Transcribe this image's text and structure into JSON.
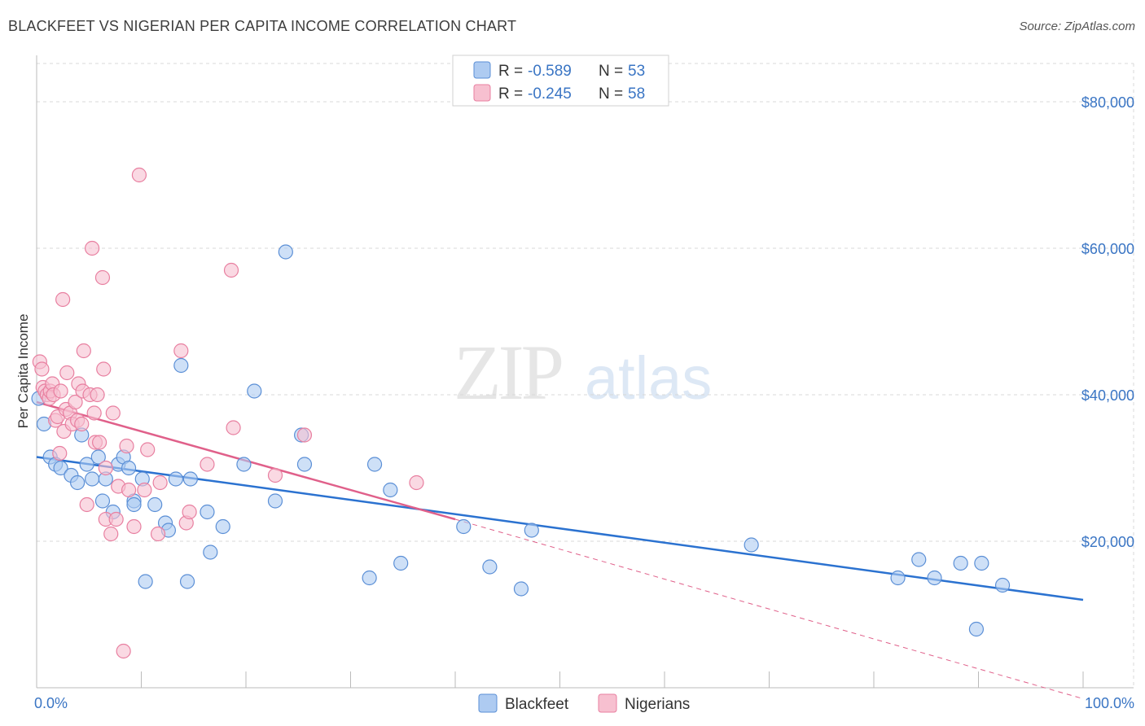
{
  "title": "BLACKFEET VS NIGERIAN PER CAPITA INCOME CORRELATION CHART",
  "source": "Source: ZipAtlas.com",
  "watermark": {
    "zip": "ZIP",
    "atlas": "atlas"
  },
  "colors": {
    "blackfeet_fill": "#aecbf1",
    "blackfeet_stroke": "#5b8fd6",
    "blackfeet_line": "#2b72d0",
    "nigerian_fill": "#f7c0d0",
    "nigerian_stroke": "#e87fa0",
    "nigerian_line": "#e0608a",
    "axis_text": "#3a75c4",
    "grid": "#d8d8d8"
  },
  "chart_data": {
    "type": "scatter",
    "title": "BLACKFEET VS NIGERIAN PER CAPITA INCOME CORRELATION CHART",
    "xlabel": "",
    "ylabel": "Per Capita Income",
    "xlim": [
      0,
      100
    ],
    "ylim": [
      0,
      85000
    ],
    "x_tick_labels": [
      "0.0%",
      "100.0%"
    ],
    "y_ticks": [
      20000,
      40000,
      60000,
      80000
    ],
    "y_tick_labels": [
      "$20,000",
      "$40,000",
      "$60,000",
      "$80,000"
    ],
    "legend": [
      {
        "name": "Blackfeet",
        "r_label": "R =",
        "r": "-0.589",
        "n_label": "N =",
        "n": "53"
      },
      {
        "name": "Nigerians",
        "r_label": "R =",
        "r": "-0.245",
        "n_label": "N =",
        "n": "58"
      }
    ],
    "series": [
      {
        "name": "Blackfeet",
        "trend": {
          "x0": 0,
          "y0": 31500,
          "x1": 100,
          "y1": 12000
        },
        "points": [
          [
            0.2,
            39500
          ],
          [
            0.7,
            36000
          ],
          [
            1.3,
            31500
          ],
          [
            1.8,
            30500
          ],
          [
            2.3,
            30000
          ],
          [
            3.3,
            29000
          ],
          [
            3.9,
            28000
          ],
          [
            4.3,
            34500
          ],
          [
            4.8,
            30500
          ],
          [
            5.3,
            28500
          ],
          [
            5.9,
            31500
          ],
          [
            6.3,
            25500
          ],
          [
            6.6,
            28500
          ],
          [
            7.3,
            24000
          ],
          [
            7.8,
            30500
          ],
          [
            8.3,
            31500
          ],
          [
            8.8,
            30000
          ],
          [
            9.3,
            25500
          ],
          [
            9.3,
            25000
          ],
          [
            10.1,
            28500
          ],
          [
            10.4,
            14500
          ],
          [
            11.3,
            25000
          ],
          [
            12.3,
            22500
          ],
          [
            12.6,
            21500
          ],
          [
            13.3,
            28500
          ],
          [
            13.8,
            44000
          ],
          [
            14.4,
            14500
          ],
          [
            14.7,
            28500
          ],
          [
            16.3,
            24000
          ],
          [
            16.6,
            18500
          ],
          [
            17.8,
            22000
          ],
          [
            19.8,
            30500
          ],
          [
            20.8,
            40500
          ],
          [
            22.8,
            25500
          ],
          [
            23.8,
            59500
          ],
          [
            25.3,
            34500
          ],
          [
            25.6,
            30500
          ],
          [
            31.8,
            15000
          ],
          [
            32.3,
            30500
          ],
          [
            33.8,
            27000
          ],
          [
            34.8,
            17000
          ],
          [
            40.8,
            22000
          ],
          [
            43.3,
            16500
          ],
          [
            46.3,
            13500
          ],
          [
            47.3,
            21500
          ],
          [
            68.3,
            19500
          ],
          [
            82.3,
            15000
          ],
          [
            84.3,
            17500
          ],
          [
            85.8,
            15000
          ],
          [
            88.3,
            17000
          ],
          [
            89.8,
            8000
          ],
          [
            90.3,
            17000
          ],
          [
            92.3,
            14000
          ]
        ]
      },
      {
        "name": "Nigerians",
        "trend": {
          "x0": 0,
          "y0": 39000,
          "x1": 40,
          "y1": 23000,
          "dash_x1": 100,
          "dash_y1": -1500
        },
        "points": [
          [
            0.3,
            44500
          ],
          [
            0.5,
            43500
          ],
          [
            0.6,
            41000
          ],
          [
            0.8,
            40500
          ],
          [
            1.0,
            40000
          ],
          [
            1.2,
            39500
          ],
          [
            1.3,
            40500
          ],
          [
            1.5,
            41500
          ],
          [
            1.6,
            40000
          ],
          [
            1.8,
            36500
          ],
          [
            2.0,
            37000
          ],
          [
            2.2,
            32000
          ],
          [
            2.3,
            40500
          ],
          [
            2.6,
            35000
          ],
          [
            2.8,
            38000
          ],
          [
            2.9,
            43000
          ],
          [
            3.2,
            37500
          ],
          [
            3.4,
            36000
          ],
          [
            3.7,
            39000
          ],
          [
            3.9,
            36500
          ],
          [
            4.0,
            41500
          ],
          [
            4.3,
            36000
          ],
          [
            4.4,
            40500
          ],
          [
            4.5,
            46000
          ],
          [
            4.8,
            25000
          ],
          [
            5.1,
            40000
          ],
          [
            5.3,
            60000
          ],
          [
            5.5,
            37500
          ],
          [
            5.6,
            33500
          ],
          [
            5.8,
            40000
          ],
          [
            6.0,
            33500
          ],
          [
            6.3,
            56000
          ],
          [
            6.4,
            43500
          ],
          [
            6.6,
            23000
          ],
          [
            6.6,
            30000
          ],
          [
            7.1,
            21000
          ],
          [
            7.3,
            37500
          ],
          [
            7.6,
            23000
          ],
          [
            7.8,
            27500
          ],
          [
            8.3,
            5000
          ],
          [
            8.6,
            33000
          ],
          [
            8.8,
            27000
          ],
          [
            9.3,
            22000
          ],
          [
            9.8,
            70000
          ],
          [
            10.3,
            27000
          ],
          [
            10.6,
            32500
          ],
          [
            11.6,
            21000
          ],
          [
            11.8,
            28000
          ],
          [
            13.8,
            46000
          ],
          [
            14.3,
            22500
          ],
          [
            14.6,
            24000
          ],
          [
            16.3,
            30500
          ],
          [
            18.6,
            57000
          ],
          [
            18.8,
            35500
          ],
          [
            22.8,
            29000
          ],
          [
            25.6,
            34500
          ],
          [
            36.3,
            28000
          ],
          [
            2.5,
            53000
          ]
        ]
      }
    ]
  },
  "bottom_legend": [
    "Blackfeet",
    "Nigerians"
  ]
}
